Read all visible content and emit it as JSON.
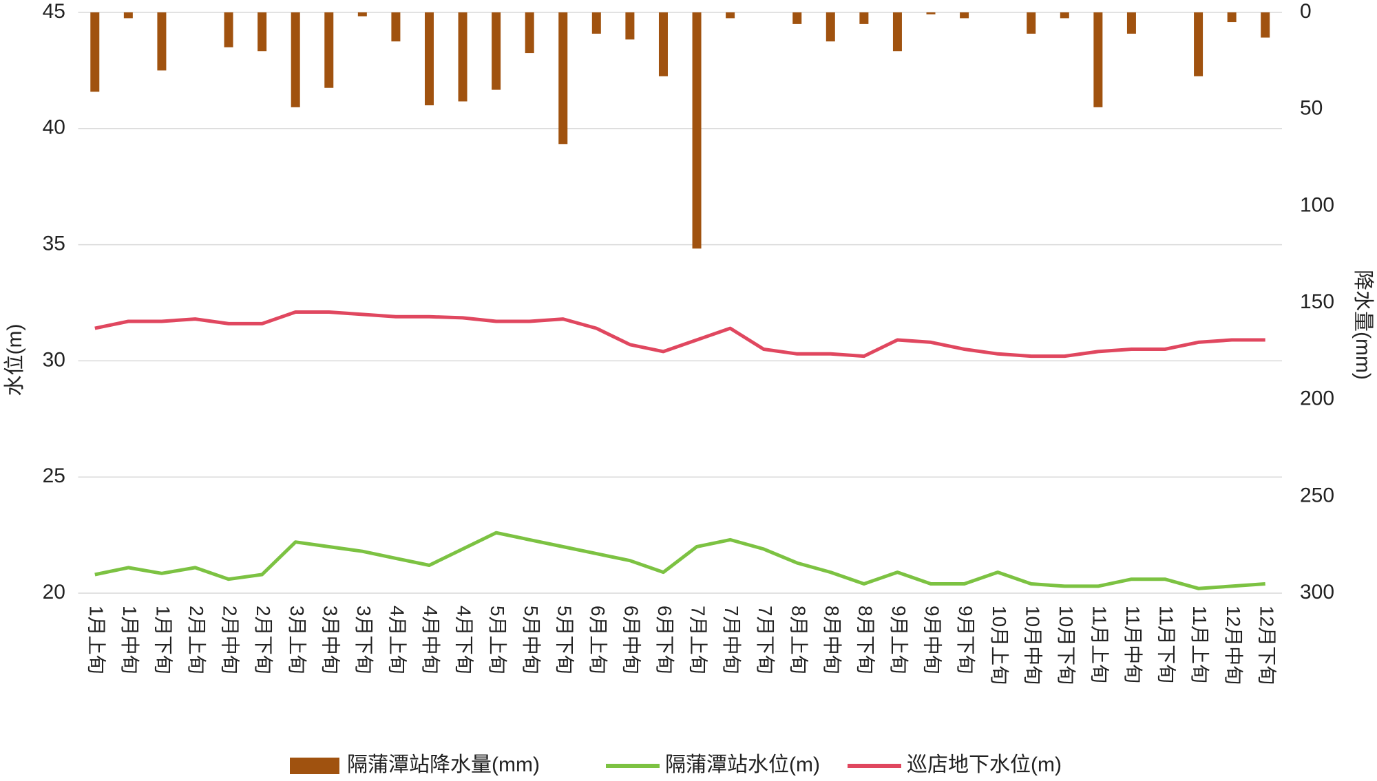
{
  "chart_data": {
    "type": "bar_line_dual",
    "categories": [
      "1月上旬",
      "1月中旬",
      "1月下旬",
      "2月上旬",
      "2月中旬",
      "2月下旬",
      "3月上旬",
      "3月中旬",
      "3月下旬",
      "4月上旬",
      "4月中旬",
      "4月下旬",
      "5月上旬",
      "5月中旬",
      "5月下旬",
      "6月上旬",
      "6月中旬",
      "6月下旬",
      "7月上旬",
      "7月中旬",
      "7月下旬",
      "8月上旬",
      "8月中旬",
      "8月下旬",
      "9月上旬",
      "9月中旬",
      "9月下旬",
      "10月上旬",
      "10月中旬",
      "10月下旬",
      "11月上旬",
      "11月中旬",
      "11月下旬",
      "11月上旬",
      "12月中旬",
      "12月下旬"
    ],
    "series": [
      {
        "name": "隔蒲潭站降水量(mm)",
        "kind": "bar",
        "axis": "y2",
        "color": "#a0520f",
        "values": [
          41,
          3,
          30,
          0,
          18,
          20,
          49,
          39,
          2,
          15,
          48,
          46,
          40,
          21,
          68,
          11,
          14,
          33,
          122,
          3,
          0,
          6,
          15,
          6,
          20,
          1,
          3,
          0,
          11,
          3,
          49,
          11,
          0,
          33,
          5,
          13
        ]
      },
      {
        "name": "隔蒲潭站水位(m)",
        "kind": "line",
        "axis": "y",
        "color": "#7cc242",
        "values": [
          20.8,
          21.1,
          20.85,
          21.1,
          20.6,
          20.8,
          22.2,
          22.0,
          21.8,
          21.5,
          21.2,
          21.9,
          22.6,
          22.3,
          22.0,
          21.7,
          21.4,
          20.9,
          22.0,
          22.3,
          21.9,
          21.3,
          20.9,
          20.4,
          20.9,
          20.4,
          20.4,
          20.9,
          20.4,
          20.3,
          20.3,
          20.6,
          20.6,
          20.2,
          20.3,
          20.4
        ]
      },
      {
        "name": "巡店地下水位(m)",
        "kind": "line",
        "axis": "y",
        "color": "#e0475f",
        "values": [
          31.4,
          31.7,
          31.7,
          31.8,
          31.6,
          31.6,
          32.1,
          32.1,
          32.0,
          31.9,
          31.9,
          31.85,
          31.7,
          31.7,
          31.8,
          31.4,
          30.7,
          30.4,
          30.9,
          31.4,
          30.5,
          30.3,
          30.3,
          30.2,
          30.9,
          30.8,
          30.5,
          30.3,
          30.2,
          30.2,
          30.4,
          30.5,
          30.5,
          30.8,
          30.9,
          30.9
        ]
      }
    ],
    "y_label": "水位(m)",
    "y2_label": "降水量(mm)",
    "ylim": [
      20,
      45
    ],
    "yticks": [
      20,
      25,
      30,
      35,
      40,
      45
    ],
    "y2lim": [
      0,
      300
    ],
    "y2ticks": [
      0,
      50,
      100,
      150,
      200,
      250,
      300
    ],
    "y2_inverted": true,
    "grid": true,
    "legend": "bottom"
  }
}
